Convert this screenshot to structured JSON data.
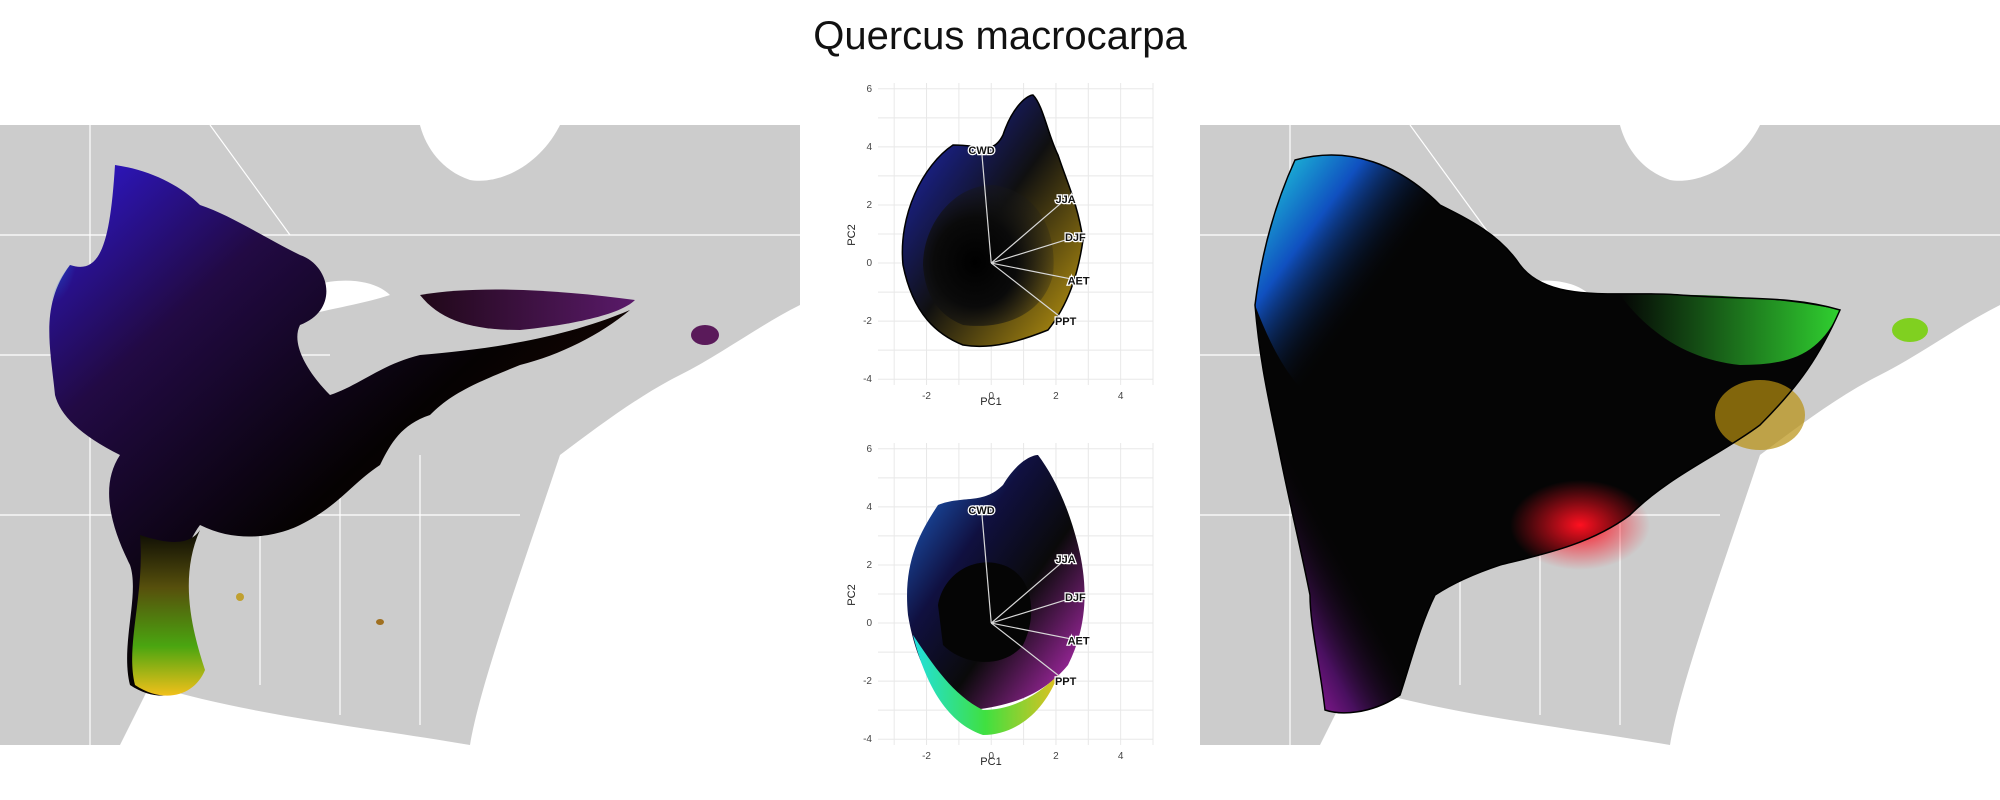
{
  "title": "Quercus macrocarpa",
  "colors": {
    "land": "#cccccc",
    "borders": "#ffffff",
    "background": "#ffffff",
    "ink": "#000000"
  },
  "chart_data": [
    {
      "type": "map",
      "panel": "left",
      "description_visible": "Geographic range map colored by climate position"
    },
    {
      "type": "scatter",
      "panel": "biplot-top",
      "xlabel": "PC1",
      "ylabel": "PC2",
      "xticks": [
        -2,
        0,
        2,
        4
      ],
      "yticks": [
        -4,
        -2,
        0,
        2,
        4,
        6
      ],
      "xlim": [
        -3.5,
        5
      ],
      "ylim": [
        -4.2,
        6.2
      ],
      "grid": true,
      "arrows": [
        {
          "label": "CWD",
          "x": -0.3,
          "y": 3.9
        },
        {
          "label": "JJA",
          "x": 2.3,
          "y": 2.2
        },
        {
          "label": "DJF",
          "x": 2.6,
          "y": 0.9
        },
        {
          "label": "AET",
          "x": 2.7,
          "y": -0.6
        },
        {
          "label": "PPT",
          "x": 2.3,
          "y": -2.0
        }
      ]
    },
    {
      "type": "scatter",
      "panel": "biplot-bottom",
      "xlabel": "PC1",
      "ylabel": "PC2",
      "xticks": [
        -2,
        0,
        2,
        4
      ],
      "yticks": [
        -4,
        -2,
        0,
        2,
        4,
        6
      ],
      "xlim": [
        -3.5,
        5
      ],
      "ylim": [
        -4.2,
        6.2
      ],
      "grid": true,
      "arrows": [
        {
          "label": "CWD",
          "x": -0.3,
          "y": 3.9
        },
        {
          "label": "JJA",
          "x": 2.3,
          "y": 2.2
        },
        {
          "label": "DJF",
          "x": 2.6,
          "y": 0.9
        },
        {
          "label": "AET",
          "x": 2.7,
          "y": -0.6
        },
        {
          "label": "PPT",
          "x": 2.3,
          "y": -2.0
        }
      ]
    },
    {
      "type": "map",
      "panel": "right",
      "description_visible": "Smoothed geographic range map with outline"
    }
  ]
}
